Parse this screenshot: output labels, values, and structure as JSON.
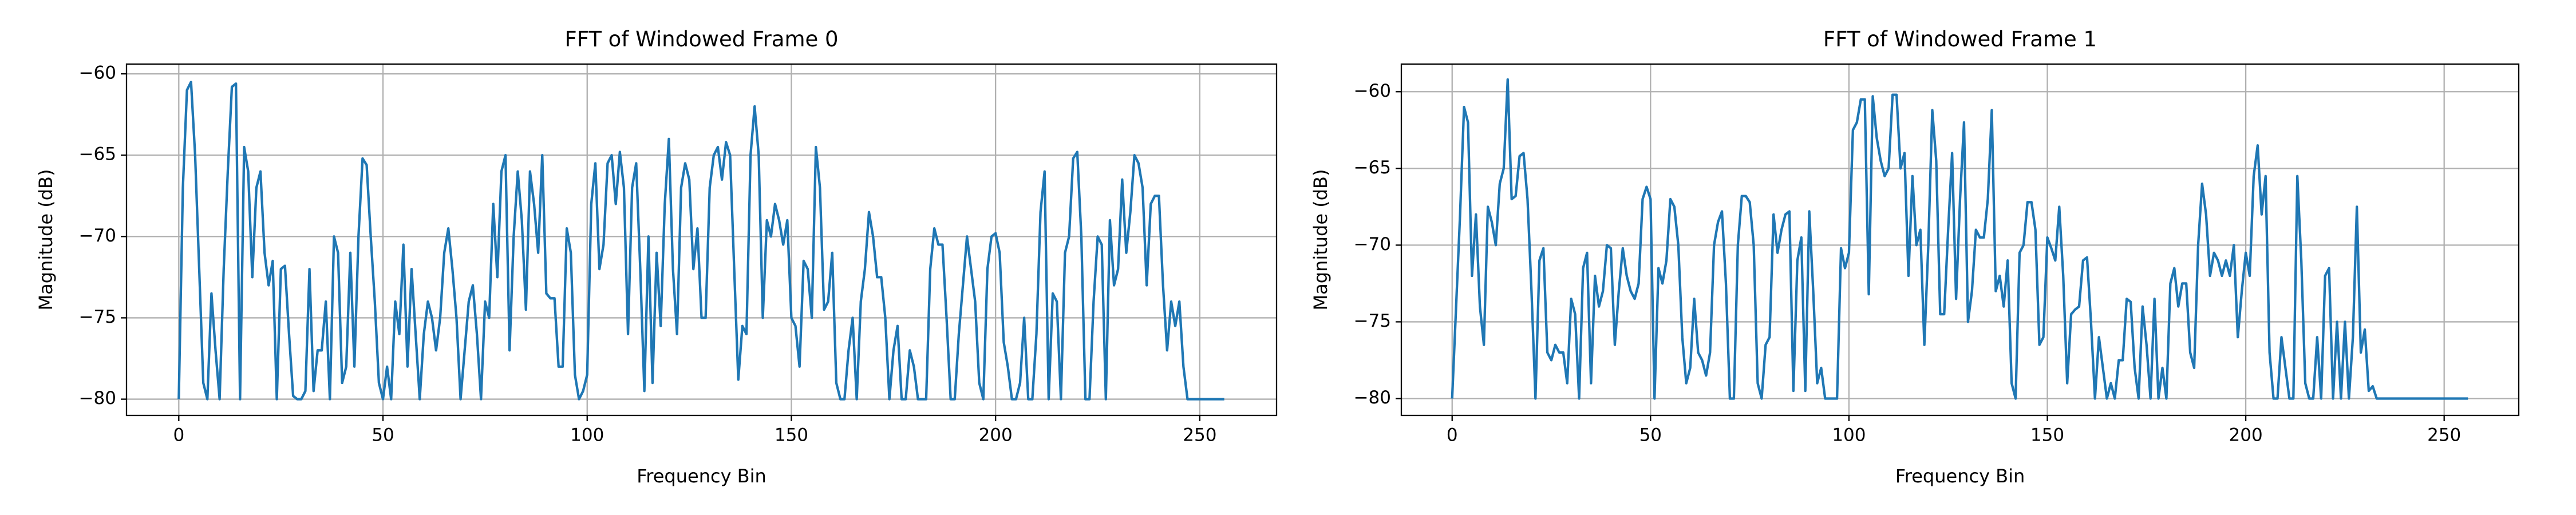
{
  "chart_data": [
    {
      "type": "line",
      "title": "FFT of Windowed Frame 0",
      "x_label": "Frequency Bin",
      "y_label": "Magnitude (dB)",
      "xlim": [
        -12.8,
        268.8
      ],
      "xticks": [
        0,
        50,
        100,
        150,
        200,
        250
      ],
      "ylim": [
        -81,
        -59.4
      ],
      "yticks": [
        {
          "value": -80,
          "label": "−80"
        },
        {
          "value": -75,
          "label": "−75"
        },
        {
          "value": -70,
          "label": "−70"
        },
        {
          "value": -65,
          "label": "−65"
        },
        {
          "value": -60,
          "label": "−60"
        }
      ],
      "grid": true,
      "x": [
        0,
        1,
        2,
        3,
        4,
        5,
        6,
        7,
        8,
        9,
        10,
        11,
        12,
        13,
        14,
        15,
        16,
        17,
        18,
        19,
        20,
        21,
        22,
        23,
        24,
        25,
        26,
        27,
        28,
        29,
        30,
        31,
        32,
        33,
        34,
        35,
        36,
        37,
        38,
        39,
        40,
        41,
        42,
        43,
        44,
        45,
        46,
        47,
        48,
        49,
        50,
        51,
        52,
        53,
        54,
        55,
        56,
        57,
        58,
        59,
        60,
        61,
        62,
        63,
        64,
        65,
        66,
        67,
        68,
        69,
        70,
        71,
        72,
        73,
        74,
        75,
        76,
        77,
        78,
        79,
        80,
        81,
        82,
        83,
        84,
        85,
        86,
        87,
        88,
        89,
        90,
        91,
        92,
        93,
        94,
        95,
        96,
        97,
        98,
        99,
        100,
        101,
        102,
        103,
        104,
        105,
        106,
        107,
        108,
        109,
        110,
        111,
        112,
        113,
        114,
        115,
        116,
        117,
        118,
        119,
        120,
        121,
        122,
        123,
        124,
        125,
        126,
        127,
        128,
        129,
        130,
        131,
        132,
        133,
        134,
        135,
        136,
        137,
        138,
        139,
        140,
        141,
        142,
        143,
        144,
        145,
        146,
        147,
        148,
        149,
        150,
        151,
        152,
        153,
        154,
        155,
        156,
        157,
        158,
        159,
        160,
        161,
        162,
        163,
        164,
        165,
        166,
        167,
        168,
        169,
        170,
        171,
        172,
        173,
        174,
        175,
        176,
        177,
        178,
        179,
        180,
        181,
        182,
        183,
        184,
        185,
        186,
        187,
        188,
        189,
        190,
        191,
        192,
        193,
        194,
        195,
        196,
        197,
        198,
        199,
        200,
        201,
        202,
        203,
        204,
        205,
        206,
        207,
        208,
        209,
        210,
        211,
        212,
        213,
        214,
        215,
        216,
        217,
        218,
        219,
        220,
        221,
        222,
        223,
        224,
        225,
        226,
        227,
        228,
        229,
        230,
        231,
        232,
        233,
        234,
        235,
        236,
        237,
        238,
        239,
        240,
        241,
        242,
        243,
        244,
        245,
        246,
        247,
        248,
        249,
        250,
        251,
        252,
        253,
        254,
        255,
        256
      ],
      "series": [
        {
          "color": "#1f77b4",
          "values": [
            -80,
            -67,
            -61,
            -60.5,
            -65,
            -72,
            -79,
            -80,
            -73.5,
            -77,
            -80,
            -72,
            -66,
            -60.8,
            -60.6,
            -80,
            -64.5,
            -66,
            -72.5,
            -67,
            -66,
            -71,
            -73,
            -71.5,
            -80,
            -72,
            -71.8,
            -76,
            -79.8,
            -80,
            -80,
            -79.5,
            -72,
            -79.5,
            -77,
            -77,
            -74,
            -80,
            -70,
            -71,
            -79,
            -78,
            -71,
            -78,
            -70,
            -65.2,
            -65.6,
            -70,
            -74,
            -79,
            -80,
            -78,
            -80,
            -74,
            -76,
            -70.5,
            -78,
            -72,
            -76,
            -80,
            -76,
            -74,
            -75,
            -77,
            -75,
            -71,
            -69.5,
            -72,
            -75,
            -80,
            -77,
            -74,
            -73,
            -76,
            -80,
            -74,
            -75,
            -68,
            -72.5,
            -66,
            -65,
            -77,
            -70,
            -66,
            -69,
            -74.5,
            -66,
            -68,
            -71,
            -65,
            -73.5,
            -73.8,
            -73.8,
            -78,
            -78,
            -69.5,
            -71,
            -78.5,
            -80,
            -79.5,
            -78.5,
            -68,
            -65.5,
            -72,
            -70.5,
            -65.5,
            -65,
            -68,
            -64.8,
            -67,
            -76,
            -67,
            -65.5,
            -72,
            -79.5,
            -70,
            -79,
            -71,
            -75.5,
            -68,
            -64,
            -72,
            -76,
            -67,
            -65.5,
            -66.5,
            -72,
            -69.5,
            -75,
            -75,
            -67,
            -65,
            -64.5,
            -66.5,
            -64.2,
            -65,
            -72,
            -78.8,
            -75.5,
            -76,
            -65,
            -62,
            -65,
            -75,
            -69,
            -70,
            -68,
            -69,
            -70.5,
            -69,
            -75,
            -75.5,
            -78,
            -71.5,
            -72,
            -75,
            -64.5,
            -67,
            -74.5,
            -74,
            -71,
            -79,
            -80,
            -80,
            -77,
            -75,
            -80,
            -74,
            -72,
            -68.5,
            -70,
            -72.5,
            -72.5,
            -75,
            -80,
            -77,
            -75.5,
            -80,
            -80,
            -77,
            -78,
            -80,
            -80,
            -80,
            -72,
            -69.5,
            -70.5,
            -70.5,
            -75,
            -80,
            -80,
            -76,
            -73,
            -70,
            -72,
            -74,
            -79,
            -80,
            -72,
            -70,
            -69.8,
            -71,
            -76.5,
            -78,
            -80,
            -80,
            -79,
            -75,
            -80,
            -80,
            -76,
            -68.5,
            -66,
            -80,
            -73.5,
            -74,
            -80,
            -71,
            -70,
            -65.2,
            -64.8,
            -70,
            -80,
            -80,
            -74,
            -70,
            -70.5,
            -80,
            -69,
            -73,
            -72,
            -66.5,
            -71,
            -68.5,
            -65,
            -65.5,
            -67,
            -73,
            -68,
            -67.5,
            -67.5,
            -73,
            -77,
            -74,
            -75.5,
            -74,
            -78,
            -80,
            -80,
            -80,
            -80,
            -80,
            -80,
            -80,
            -80,
            -80,
            -80
          ]
        }
      ]
    },
    {
      "type": "line",
      "title": "FFT of Windowed Frame 1",
      "x_label": "Frequency Bin",
      "y_label": "Magnitude (dB)",
      "xlim": [
        -12.8,
        268.8
      ],
      "xticks": [
        0,
        50,
        100,
        150,
        200,
        250
      ],
      "ylim": [
        -81.1,
        -58.2
      ],
      "yticks": [
        {
          "value": -80,
          "label": "−80"
        },
        {
          "value": -75,
          "label": "−75"
        },
        {
          "value": -70,
          "label": "−70"
        },
        {
          "value": -65,
          "label": "−65"
        },
        {
          "value": -60,
          "label": "−60"
        }
      ],
      "grid": true,
      "x": [
        0,
        1,
        2,
        3,
        4,
        5,
        6,
        7,
        8,
        9,
        10,
        11,
        12,
        13,
        14,
        15,
        16,
        17,
        18,
        19,
        20,
        21,
        22,
        23,
        24,
        25,
        26,
        27,
        28,
        29,
        30,
        31,
        32,
        33,
        34,
        35,
        36,
        37,
        38,
        39,
        40,
        41,
        42,
        43,
        44,
        45,
        46,
        47,
        48,
        49,
        50,
        51,
        52,
        53,
        54,
        55,
        56,
        57,
        58,
        59,
        60,
        61,
        62,
        63,
        64,
        65,
        66,
        67,
        68,
        69,
        70,
        71,
        72,
        73,
        74,
        75,
        76,
        77,
        78,
        79,
        80,
        81,
        82,
        83,
        84,
        85,
        86,
        87,
        88,
        89,
        90,
        91,
        92,
        93,
        94,
        95,
        96,
        97,
        98,
        99,
        100,
        101,
        102,
        103,
        104,
        105,
        106,
        107,
        108,
        109,
        110,
        111,
        112,
        113,
        114,
        115,
        116,
        117,
        118,
        119,
        120,
        121,
        122,
        123,
        124,
        125,
        126,
        127,
        128,
        129,
        130,
        131,
        132,
        133,
        134,
        135,
        136,
        137,
        138,
        139,
        140,
        141,
        142,
        143,
        144,
        145,
        146,
        147,
        148,
        149,
        150,
        151,
        152,
        153,
        154,
        155,
        156,
        157,
        158,
        159,
        160,
        161,
        162,
        163,
        164,
        165,
        166,
        167,
        168,
        169,
        170,
        171,
        172,
        173,
        174,
        175,
        176,
        177,
        178,
        179,
        180,
        181,
        182,
        183,
        184,
        185,
        186,
        187,
        188,
        189,
        190,
        191,
        192,
        193,
        194,
        195,
        196,
        197,
        198,
        199,
        200,
        201,
        202,
        203,
        204,
        205,
        206,
        207,
        208,
        209,
        210,
        211,
        212,
        213,
        214,
        215,
        216,
        217,
        218,
        219,
        220,
        221,
        222,
        223,
        224,
        225,
        226,
        227,
        228,
        229,
        230,
        231,
        232,
        233,
        234,
        235,
        236,
        237,
        238,
        239,
        240,
        241,
        242,
        243,
        244,
        245,
        246,
        247,
        248,
        249,
        250,
        251,
        252,
        253,
        254,
        255,
        256
      ],
      "series": [
        {
          "color": "#1f77b4",
          "values": [
            -80,
            -74,
            -68,
            -61,
            -62,
            -72,
            -68,
            -74,
            -76.5,
            -67.5,
            -68.5,
            -70,
            -66,
            -65,
            -59.2,
            -67,
            -66.8,
            -64.2,
            -64,
            -67,
            -73,
            -80,
            -71,
            -70.2,
            -77,
            -77.5,
            -76.5,
            -77,
            -77,
            -79,
            -73.5,
            -74.5,
            -80,
            -71.5,
            -70.5,
            -79,
            -72,
            -74,
            -73,
            -70,
            -70.2,
            -76.5,
            -73,
            -70.2,
            -72,
            -73,
            -73.5,
            -72.5,
            -67,
            -66.2,
            -67,
            -80,
            -71.5,
            -72.5,
            -71,
            -67,
            -67.5,
            -70,
            -76,
            -79,
            -78,
            -73.5,
            -77,
            -77.5,
            -78.5,
            -77,
            -70,
            -68.5,
            -67.8,
            -72.5,
            -80,
            -80,
            -70,
            -66.8,
            -66.8,
            -67.2,
            -70,
            -79,
            -80,
            -76.5,
            -76,
            -68,
            -70.5,
            -69,
            -68,
            -67.8,
            -79.5,
            -71,
            -69.5,
            -79.5,
            -67.8,
            -73,
            -79,
            -78,
            -80,
            -80,
            -80,
            -80,
            -70.2,
            -71.5,
            -70.5,
            -62.5,
            -62,
            -60.5,
            -60.5,
            -73.2,
            -60.3,
            -63,
            -64.5,
            -65.5,
            -65,
            -60.2,
            -60.2,
            -65,
            -64,
            -72,
            -65.5,
            -70,
            -69,
            -76.5,
            -70,
            -61.2,
            -64.5,
            -74.5,
            -74.5,
            -69,
            -64,
            -73.5,
            -67,
            -62,
            -75,
            -73,
            -69,
            -69.5,
            -69.5,
            -67,
            -61.2,
            -73,
            -72,
            -74,
            -71,
            -79,
            -80,
            -70.5,
            -70,
            -67.2,
            -67.2,
            -69,
            -76.5,
            -76,
            -69.5,
            -70.2,
            -71,
            -67.5,
            -72,
            -79,
            -74.5,
            -74.2,
            -74,
            -71,
            -70.8,
            -75,
            -80,
            -76,
            -78,
            -80,
            -79,
            -80,
            -77.5,
            -77.5,
            -73.5,
            -73.7,
            -78,
            -80,
            -74,
            -76.5,
            -80,
            -73.5,
            -80,
            -78,
            -80,
            -72.5,
            -71.5,
            -74,
            -72.5,
            -72.5,
            -77,
            -78,
            -70,
            -66,
            -68,
            -72,
            -70.5,
            -71,
            -72,
            -71,
            -72,
            -70,
            -76,
            -73,
            -70.5,
            -72,
            -65.5,
            -63.5,
            -68,
            -65.5,
            -77,
            -80,
            -80,
            -76,
            -78,
            -80,
            -80,
            -65.5,
            -71,
            -79,
            -80,
            -80,
            -76,
            -80,
            -72,
            -71.5,
            -80,
            -75,
            -80,
            -75,
            -80,
            -76,
            -67.5,
            -77,
            -75.5,
            -79.5,
            -79.2,
            -80,
            -80,
            -80,
            -80,
            -80,
            -80,
            -80,
            -80,
            -80,
            -80,
            -80,
            -80,
            -80,
            -80,
            -80,
            -80,
            -80,
            -80,
            -80,
            -80,
            -80,
            -80,
            -80,
            -80
          ]
        }
      ]
    }
  ]
}
